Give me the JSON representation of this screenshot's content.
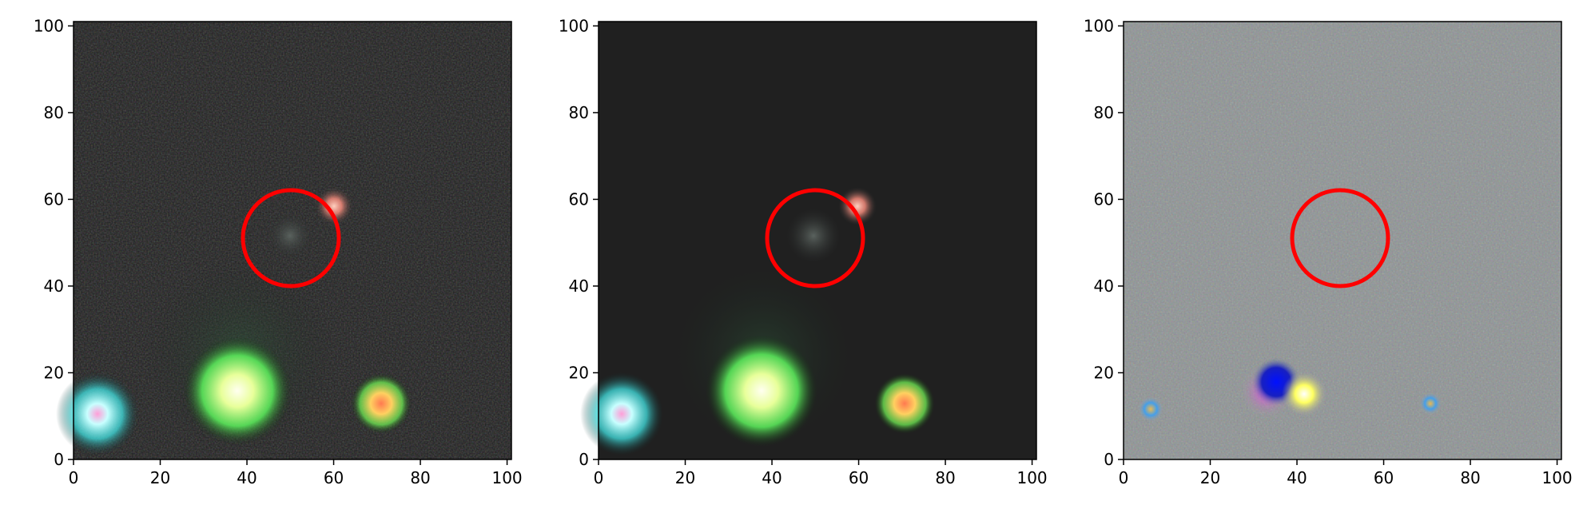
{
  "figure": {
    "panels": [
      {
        "id": "observed",
        "x_ticks": [
          "0",
          "20",
          "40",
          "60",
          "80",
          "100"
        ],
        "y_ticks": [
          "0",
          "20",
          "40",
          "60",
          "80",
          "100"
        ],
        "xlim": [
          0,
          101
        ],
        "ylim": [
          0,
          101
        ],
        "background": "#1c1c1c",
        "noise": "high",
        "marker_circle": {
          "center": [
            50,
            51
          ],
          "radius": 11,
          "color": "#ff0000"
        }
      },
      {
        "id": "model",
        "x_ticks": [
          "0",
          "20",
          "40",
          "60",
          "80",
          "100"
        ],
        "y_ticks": [
          "0",
          "20",
          "40",
          "60",
          "80",
          "100"
        ],
        "xlim": [
          0,
          101
        ],
        "ylim": [
          0,
          101
        ],
        "background": "#202020",
        "noise": "none",
        "marker_circle": {
          "center": [
            50,
            51
          ],
          "radius": 11,
          "color": "#ff0000"
        }
      },
      {
        "id": "residual",
        "x_ticks": [
          "0",
          "20",
          "40",
          "60",
          "80",
          "100"
        ],
        "y_ticks": [
          "0",
          "20",
          "40",
          "60",
          "80",
          "100"
        ],
        "xlim": [
          0,
          101
        ],
        "ylim": [
          0,
          101
        ],
        "background": "#8f9495",
        "noise": "medium",
        "marker_circle": {
          "center": [
            50,
            51
          ],
          "radius": 11,
          "color": "#ff0000"
        }
      }
    ],
    "colors": {
      "axis": "#000000",
      "circle": "#ff0000",
      "source_cyan": "#7ff4ff",
      "source_green": "#7dff7d",
      "source_orange": "#ff9a55",
      "source_pink": "#ffb0b0",
      "residual_blue": "#1020ff",
      "residual_yellow": "#ffff40"
    }
  }
}
